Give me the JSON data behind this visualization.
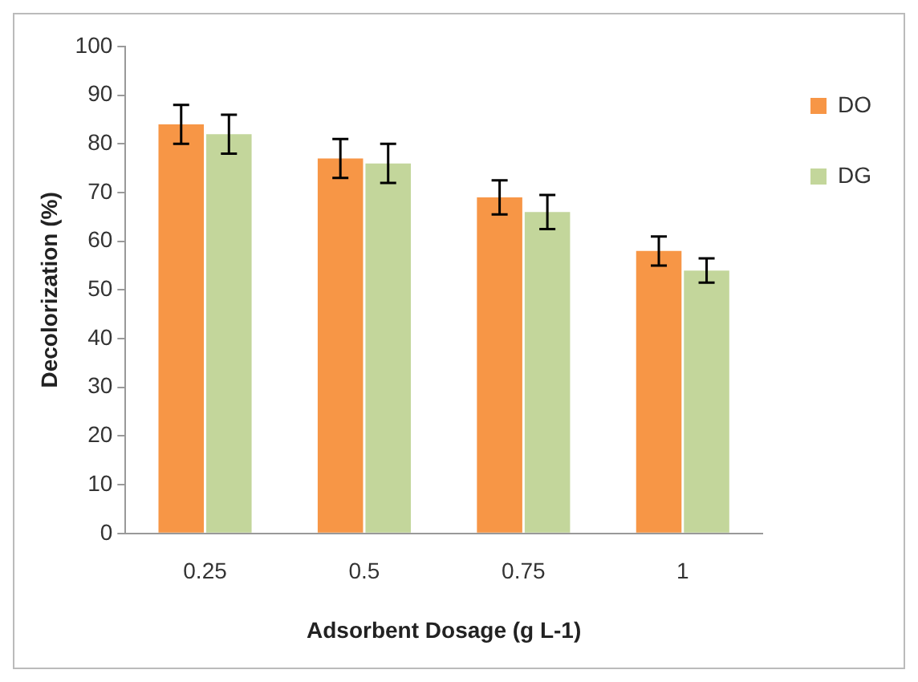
{
  "chart_data": {
    "type": "bar",
    "xlabel": "Adsorbent Dosage (g L-1)",
    "ylabel": "Decolorization (%)",
    "categories": [
      "0.25",
      "0.5",
      "0.75",
      "1"
    ],
    "series": [
      {
        "name": "DO",
        "color": "#f79646",
        "values": [
          84,
          77,
          69,
          58
        ],
        "errors": [
          4,
          4,
          3.5,
          3
        ]
      },
      {
        "name": "DG",
        "color": "#c3d69b",
        "values": [
          82,
          76,
          66,
          54
        ],
        "errors": [
          4,
          4,
          3.5,
          2.5
        ]
      }
    ],
    "ylim": [
      0,
      100
    ],
    "yticks": [
      0,
      10,
      20,
      30,
      40,
      50,
      60,
      70,
      80,
      90,
      100
    ],
    "grid": false,
    "legend": "right"
  }
}
